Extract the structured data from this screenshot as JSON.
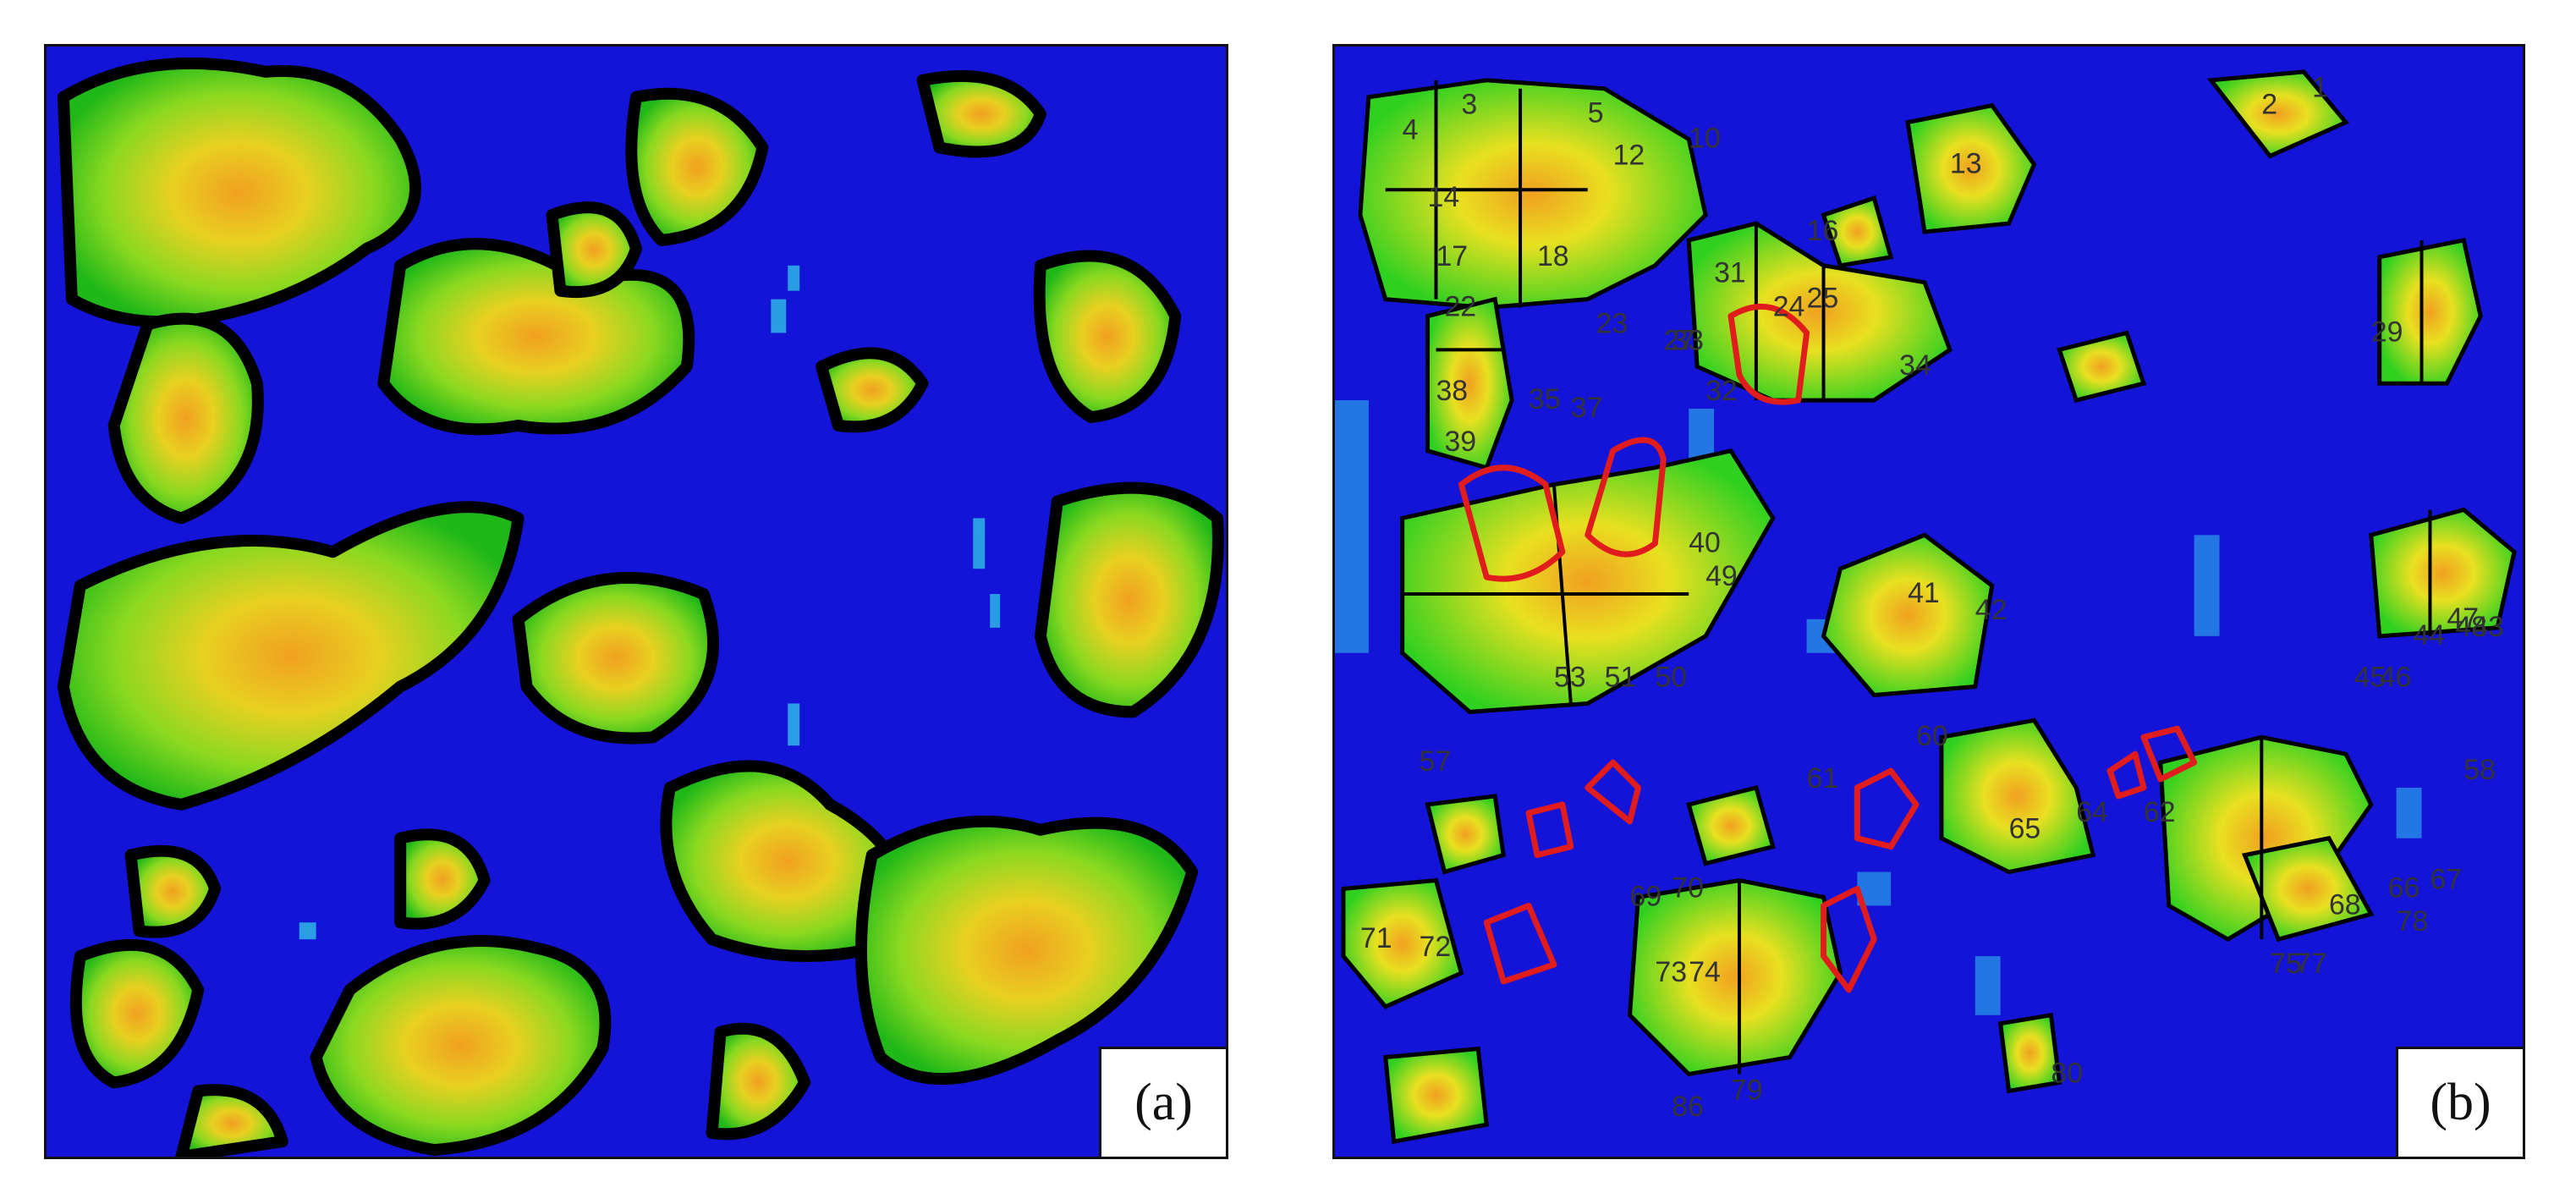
{
  "figure": {
    "panel_a": {
      "label": "(a)"
    },
    "panel_b": {
      "label": "(b)",
      "tree_ids": [
        "1",
        "2",
        "3",
        "4",
        "5",
        "10",
        "12",
        "13",
        "14",
        "16",
        "17",
        "18",
        "22",
        "23",
        "24",
        "25",
        "27",
        "29",
        "31",
        "32",
        "33",
        "34",
        "35",
        "37",
        "38",
        "39",
        "40",
        "41",
        "42",
        "43",
        "44",
        "45",
        "46",
        "47",
        "48",
        "49",
        "50",
        "51",
        "53",
        "57",
        "58",
        "60",
        "61",
        "62",
        "64",
        "65",
        "66",
        "67",
        "68",
        "69",
        "70",
        "71",
        "72",
        "73",
        "74",
        "75",
        "77",
        "78",
        "79",
        "80",
        "86"
      ],
      "colors": {
        "background": "#1414d8",
        "crown_outline": "#000000",
        "error_outline": "#e01c1c"
      }
    }
  }
}
